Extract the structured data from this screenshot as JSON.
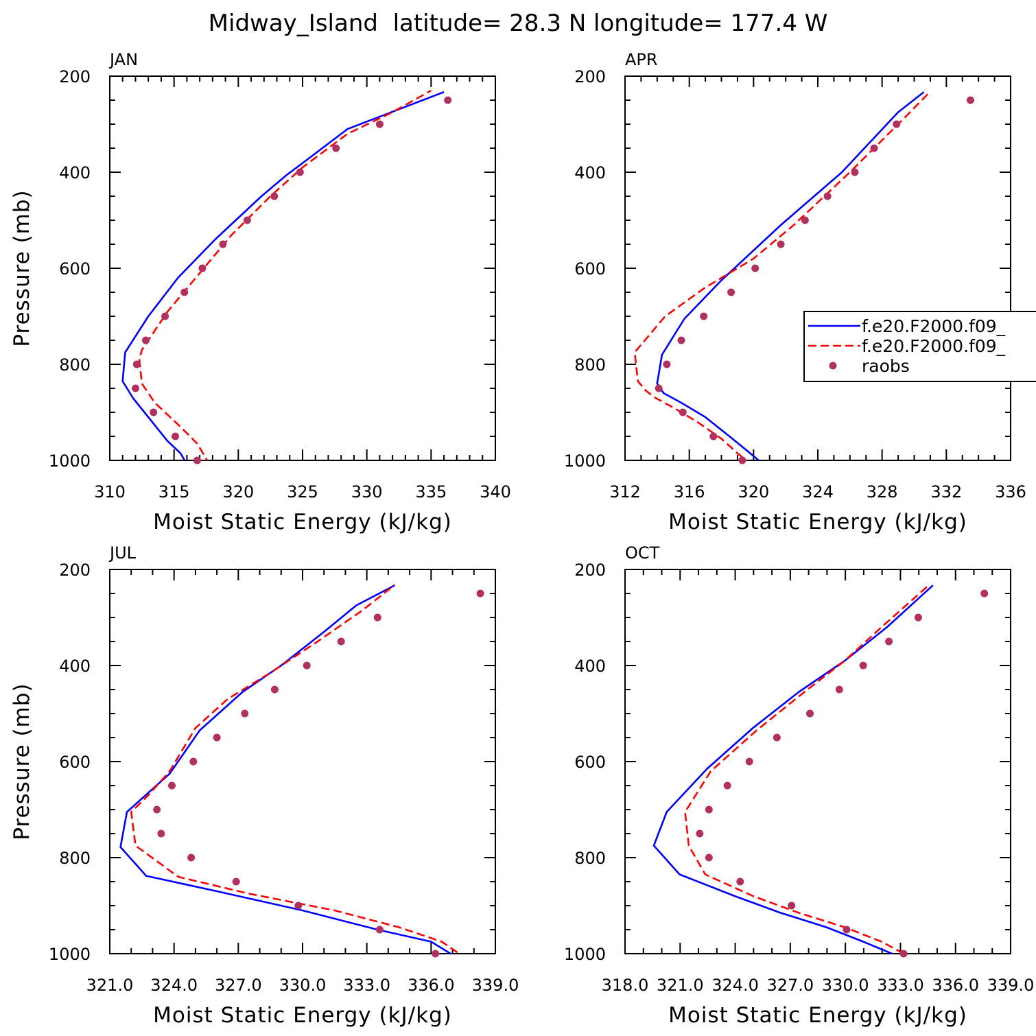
{
  "page_title": "Midway_Island  latitude= 28.3 N longitude= 177.4 W",
  "legend": {
    "entries": [
      {
        "label": "f.e20.F2000.f09_",
        "style": "solid",
        "color": "#0000ff"
      },
      {
        "label": "f.e20.F2000.f09_",
        "style": "dashed",
        "color": "#ff0000"
      },
      {
        "label": "raobs",
        "style": "dot",
        "color": "#b03060"
      }
    ]
  },
  "colors": {
    "model1": "#0000ff",
    "model2": "#ff0000",
    "raobs": "#b03060"
  },
  "chart_data": [
    {
      "type": "line",
      "panel_label": "JAN",
      "xlabel": "Moist Static Energy (kJ/kg)",
      "ylabel": "Pressure (mb)",
      "xlim": [
        310,
        340
      ],
      "ylim": [
        200,
        1000
      ],
      "x_ticks": [
        310,
        315,
        320,
        325,
        330,
        335,
        340
      ],
      "x_tick_labels": [
        "310",
        "315",
        "320",
        "325",
        "330",
        "335",
        "340"
      ],
      "x_minor_step": 1,
      "y_ticks": [
        200,
        400,
        600,
        800,
        1000
      ],
      "y_tick_labels": [
        "200",
        "400",
        "600",
        "800",
        "1000"
      ],
      "series": [
        {
          "name": "f.e20.F2000.f09_",
          "style": "solid",
          "color": "#0000ff",
          "x": [
            316.0,
            315.5,
            314.5,
            313.0,
            311.8,
            311.0,
            311.2,
            313.0,
            315.3,
            318.2,
            321.8,
            323.8,
            325.3,
            328.5,
            336.0
          ],
          "y": [
            1008,
            985,
            960,
            910,
            870,
            835,
            775,
            700,
            620,
            540,
            450,
            405,
            375,
            310,
            233
          ]
        },
        {
          "name": "f.e20.F2000.f09_",
          "style": "dashed",
          "color": "#ff0000",
          "x": [
            317.8,
            316.8,
            315.5,
            313.5,
            312.5,
            312.3,
            312.5,
            314.5,
            317.0,
            319.5,
            322.5,
            325.0,
            328.5,
            332.0,
            335.0
          ],
          "y": [
            1010,
            965,
            930,
            880,
            840,
            790,
            770,
            690,
            610,
            530,
            450,
            390,
            320,
            275,
            230
          ]
        }
      ],
      "raobs": {
        "name": "raobs",
        "x": [
          316.8,
          315.1,
          313.4,
          312.0,
          312.1,
          312.8,
          314.3,
          315.8,
          317.2,
          318.8,
          320.7,
          322.8,
          324.8,
          327.6,
          331.0,
          336.3
        ],
        "y": [
          1000,
          950,
          900,
          850,
          800,
          750,
          700,
          650,
          600,
          550,
          500,
          450,
          400,
          350,
          300,
          250
        ]
      }
    },
    {
      "type": "line",
      "panel_label": "APR",
      "xlabel": "Moist Static Energy (kJ/kg)",
      "ylabel": "",
      "xlim": [
        312,
        336
      ],
      "ylim": [
        200,
        1000
      ],
      "x_ticks": [
        312,
        316,
        320,
        324,
        328,
        332,
        336
      ],
      "x_tick_labels": [
        "312",
        "316",
        "320",
        "324",
        "328",
        "332",
        "336"
      ],
      "x_minor_step": 1,
      "y_ticks": [
        200,
        400,
        600,
        800,
        1000
      ],
      "y_tick_labels": [
        "200",
        "400",
        "600",
        "800",
        "1000"
      ],
      "series": [
        {
          "name": "f.e20.F2000.f09_",
          "style": "solid",
          "color": "#0000ff",
          "x": [
            320.6,
            319.6,
            318.5,
            317.0,
            315.5,
            314.4,
            314.0,
            314.3,
            315.7,
            318.0,
            321.7,
            325.5,
            329.0,
            330.6
          ],
          "y": [
            1008,
            980,
            950,
            910,
            880,
            860,
            840,
            780,
            705,
            625,
            510,
            400,
            275,
            233
          ]
        },
        {
          "name": "f.e20.F2000.f09_",
          "style": "dashed",
          "color": "#ff0000",
          "x": [
            319.9,
            319.0,
            318.0,
            316.5,
            315.0,
            313.9,
            313.3,
            312.8,
            312.6,
            314.5,
            317.0,
            320.0,
            322.5,
            326.0,
            329.3,
            331.0
          ],
          "y": [
            1010,
            985,
            955,
            920,
            890,
            870,
            855,
            835,
            775,
            700,
            640,
            580,
            510,
            400,
            290,
            232
          ]
        }
      ],
      "raobs": {
        "name": "raobs",
        "x": [
          319.3,
          317.5,
          315.6,
          314.1,
          314.6,
          315.5,
          316.9,
          318.6,
          320.1,
          321.7,
          323.2,
          324.6,
          326.3,
          327.5,
          328.9,
          333.5
        ],
        "y": [
          1000,
          950,
          900,
          850,
          800,
          750,
          700,
          650,
          600,
          550,
          500,
          450,
          400,
          350,
          300,
          250
        ]
      }
    },
    {
      "type": "line",
      "panel_label": "JUL",
      "xlabel": "Moist Static Energy (kJ/kg)",
      "ylabel": "Pressure (mb)",
      "xlim": [
        321,
        339
      ],
      "ylim": [
        200,
        1000
      ],
      "x_ticks": [
        321,
        324,
        327,
        330,
        333,
        336,
        339
      ],
      "x_tick_labels": [
        "321.0",
        "324.0",
        "327.0",
        "330.0",
        "333.0",
        "336.0",
        "339.0"
      ],
      "x_minor_step": 1,
      "y_ticks": [
        200,
        400,
        600,
        800,
        1000
      ],
      "y_tick_labels": [
        "200",
        "400",
        "600",
        "800",
        "1000"
      ],
      "series": [
        {
          "name": "f.e20.F2000.f09_",
          "style": "solid",
          "color": "#0000ff",
          "x": [
            337.2,
            336.0,
            333.5,
            330.0,
            326.0,
            322.7,
            321.5,
            321.8,
            323.8,
            325.2,
            327.2,
            329.0,
            331.0,
            332.5,
            334.3
          ],
          "y": [
            1008,
            975,
            950,
            910,
            870,
            838,
            778,
            705,
            625,
            535,
            455,
            400,
            330,
            275,
            233
          ]
        },
        {
          "name": "f.e20.F2000.f09_",
          "style": "dashed",
          "color": "#ff0000",
          "x": [
            337.7,
            336.5,
            334.5,
            331.5,
            327.5,
            324.2,
            322.2,
            322.0,
            322.8,
            323.8,
            325.0,
            326.5,
            328.5,
            330.7,
            332.8,
            334.3
          ],
          "y": [
            1012,
            975,
            945,
            910,
            875,
            840,
            775,
            705,
            670,
            620,
            530,
            470,
            415,
            350,
            285,
            232
          ]
        }
      ],
      "raobs": {
        "name": "raobs",
        "x": [
          336.2,
          333.6,
          329.8,
          326.9,
          324.8,
          323.4,
          323.2,
          323.9,
          324.9,
          326.0,
          327.3,
          328.7,
          330.2,
          331.8,
          333.5,
          338.3
        ],
        "y": [
          1000,
          950,
          900,
          850,
          800,
          750,
          700,
          650,
          600,
          550,
          500,
          450,
          400,
          350,
          300,
          250
        ]
      }
    },
    {
      "type": "line",
      "panel_label": "OCT",
      "xlabel": "Moist Static Energy (kJ/kg)",
      "ylabel": "",
      "xlim": [
        318.03,
        339.03
      ],
      "ylim": [
        200,
        1000
      ],
      "x_ticks": [
        318.03,
        321.03,
        324.03,
        327.03,
        330.03,
        333.03,
        336.03,
        339.03
      ],
      "x_tick_labels": [
        "318.0",
        "321.0",
        "324.0",
        "327.0",
        "330.0",
        "333.0",
        "336.0",
        "339.0"
      ],
      "x_minor_step": 1,
      "y_ticks": [
        200,
        400,
        600,
        800,
        1000
      ],
      "y_tick_labels": [
        "200",
        "400",
        "600",
        "800",
        "1000"
      ],
      "series": [
        {
          "name": "f.e20.F2000.f09_",
          "style": "solid",
          "color": "#0000ff",
          "x": [
            333.2,
            331.0,
            329.0,
            326.5,
            324.0,
            321.0,
            319.6,
            320.3,
            322.5,
            325.0,
            327.5,
            330.0,
            332.3,
            334.8
          ],
          "y": [
            1010,
            975,
            945,
            915,
            880,
            835,
            775,
            705,
            615,
            530,
            455,
            390,
            320,
            233
          ]
        },
        {
          "name": "f.e20.F2000.f09_",
          "style": "dashed",
          "color": "#ff0000",
          "x": [
            333.8,
            332.0,
            330.0,
            327.5,
            325.0,
            322.4,
            321.5,
            321.3,
            322.7,
            325.2,
            327.8,
            330.0,
            332.0,
            334.6
          ],
          "y": [
            1012,
            975,
            945,
            915,
            880,
            835,
            775,
            705,
            620,
            535,
            455,
            390,
            320,
            232
          ]
        }
      ],
      "raobs": {
        "name": "raobs",
        "x": [
          333.2,
          330.1,
          327.1,
          324.3,
          322.6,
          322.1,
          322.6,
          323.6,
          324.8,
          326.3,
          328.1,
          329.7,
          331.0,
          332.4,
          334.0,
          337.6
        ],
        "y": [
          1000,
          950,
          900,
          850,
          800,
          750,
          700,
          650,
          600,
          550,
          500,
          450,
          400,
          350,
          300,
          250
        ]
      }
    }
  ]
}
